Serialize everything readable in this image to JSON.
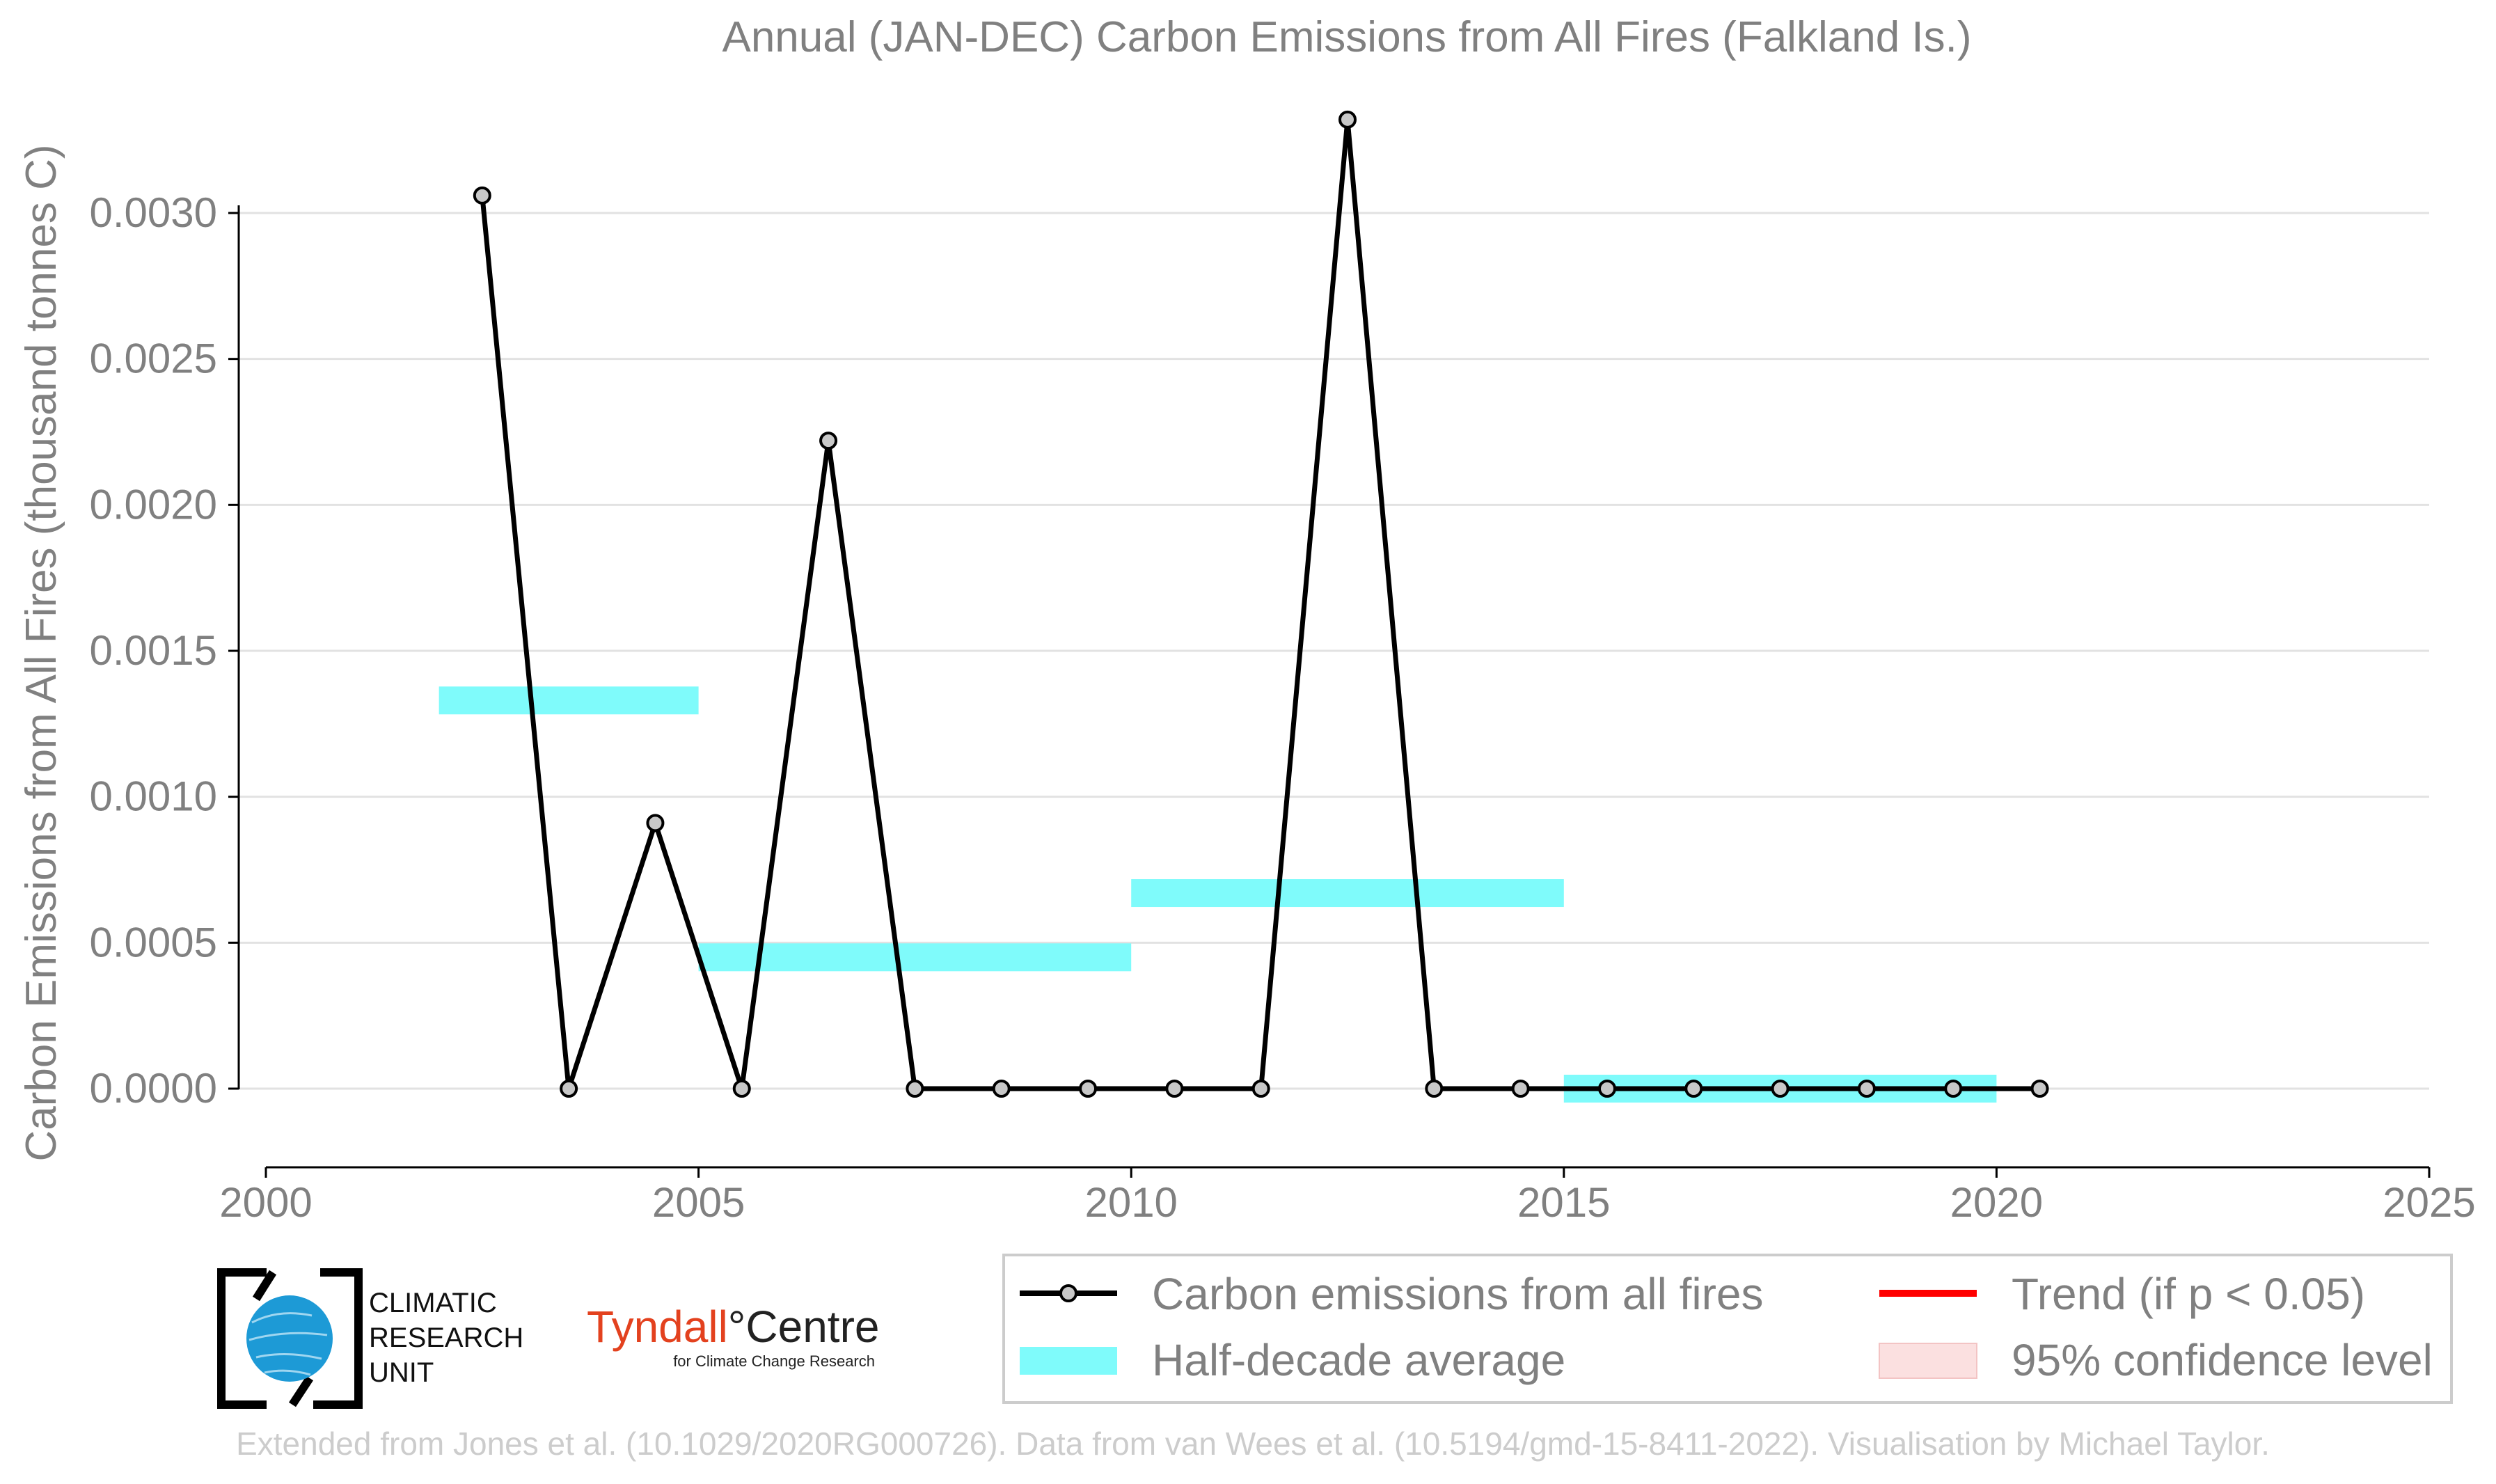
{
  "colors": {
    "line": "#000000",
    "marker_fill": "#c8c8c8",
    "half_decade": "#7ffbfb",
    "trend": "#ff0000",
    "confidence": "#fbe0e0",
    "text": "#808080",
    "grid": "#e2e2e2",
    "credit": "#cccccc",
    "tyndall_red": "#e3411e",
    "cru_blue": "#1d9ad6"
  },
  "logos": {
    "cru_lines": [
      "CLIMATIC",
      "RESEARCH",
      "UNIT"
    ],
    "tyndall_a": "Tyndall",
    "tyndall_deg": "°",
    "tyndall_b": "Centre",
    "tyndall_sub": "for Climate Change Research"
  },
  "credit": "Extended from Jones et al. (10.1029/2020RG000726). Data from van Wees et al. (10.5194/gmd-15-8411-2022). Visualisation by Michael Taylor.",
  "chart_data": {
    "type": "line",
    "title": "Annual (JAN-DEC) Carbon Emissions from All Fires (Falkland Is.)",
    "xlabel": "",
    "ylabel": "Carbon Emissions from All Fires (thousand tonnes C)",
    "xlim": [
      2000,
      2025
    ],
    "ylim": [
      -0.00026,
      0.0035
    ],
    "xticks": [
      "2000",
      "2005",
      "2010",
      "2015",
      "2020",
      "2025"
    ],
    "yticks": [
      "0.0000",
      "0.0005",
      "0.0010",
      "0.0015",
      "0.0020",
      "0.0025",
      "0.0030"
    ],
    "grid": "horizontal",
    "series": [
      {
        "name": "Carbon emissions from all fires",
        "x": [
          2002.5,
          2003.5,
          2004.5,
          2005.5,
          2006.5,
          2007.5,
          2008.5,
          2009.5,
          2010.5,
          2011.5,
          2012.5,
          2013.5,
          2014.5,
          2015.5,
          2016.5,
          2017.5,
          2018.5,
          2019.5,
          2020.5
        ],
        "y": [
          0.00306,
          0.0,
          0.00091,
          0.0,
          0.00222,
          0.0,
          0.0,
          0.0,
          0.0,
          0.0,
          0.00332,
          0.0,
          0.0,
          0.0,
          0.0,
          0.0,
          0.0,
          0.0,
          0.0
        ]
      },
      {
        "name": "Half-decade average",
        "segments": [
          {
            "x0": 2002,
            "x1": 2005,
            "y": 0.00133
          },
          {
            "x0": 2005,
            "x1": 2010,
            "y": 0.00045
          },
          {
            "x0": 2010,
            "x1": 2015,
            "y": 0.00067
          },
          {
            "x0": 2015,
            "x1": 2020,
            "y": 0.0
          }
        ]
      }
    ],
    "legend": {
      "placement": "bottom-right",
      "items": [
        {
          "label": "Carbon emissions from all fires",
          "kind": "line-marker"
        },
        {
          "label": "Trend (if p < 0.05)",
          "kind": "trend"
        },
        {
          "label": "Half-decade average",
          "kind": "band"
        },
        {
          "label": "95% confidence level",
          "kind": "confidence"
        }
      ]
    }
  }
}
